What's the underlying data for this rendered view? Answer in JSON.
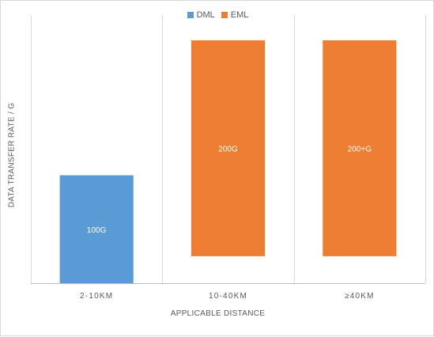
{
  "chart_data": {
    "type": "bar",
    "title": "",
    "xlabel": "APPLICABLE DISTANCE",
    "ylabel": "DATA TRANSFER RATE / G",
    "categories": [
      "2-10KM",
      "10-40KM",
      "≥40KM"
    ],
    "series": [
      {
        "name": "DML",
        "color": "#5b9bd5"
      },
      {
        "name": "EML",
        "color": "#ed7d31"
      }
    ],
    "bars": [
      {
        "category": "2-10KM",
        "series": "DML",
        "from": 0,
        "to": 100,
        "label": "100G"
      },
      {
        "category": "10-40KM",
        "series": "EML",
        "from": 25,
        "to": 225,
        "label": "200G"
      },
      {
        "category": "≥40KM",
        "series": "EML",
        "from": 25,
        "to": 225,
        "label": "200+G"
      }
    ],
    "ylim": [
      0,
      225
    ],
    "y_tick_labels_shown": false,
    "grid": "vertical category separators",
    "legend_position": "top"
  }
}
